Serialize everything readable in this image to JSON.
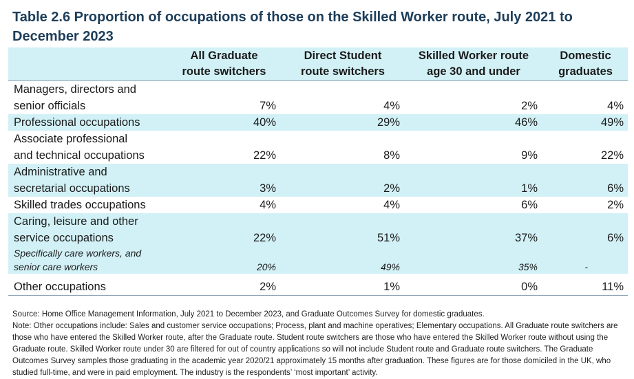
{
  "title": "Table 2.6 Proportion of occupations of those on the Skilled Worker route, July 2021 to December 2023",
  "headers": [
    [
      "",
      ""
    ],
    [
      "All Graduate",
      "route switchers"
    ],
    [
      "Direct Student",
      "route switchers"
    ],
    [
      "Skilled Worker route",
      "age 30 and under"
    ],
    [
      "Domestic",
      "graduates"
    ]
  ],
  "rows": [
    {
      "label": [
        "Managers, directors and",
        "senior officials"
      ],
      "values": [
        "7%",
        "4%",
        "2%",
        "4%"
      ]
    },
    {
      "label": [
        "Professional occupations"
      ],
      "values": [
        "40%",
        "29%",
        "46%",
        "49%"
      ]
    },
    {
      "label": [
        "Associate professional",
        "and technical occupations"
      ],
      "values": [
        "22%",
        "8%",
        "9%",
        "22%"
      ]
    },
    {
      "label": [
        "Administrative and",
        "secretarial occupations"
      ],
      "values": [
        "3%",
        "2%",
        "1%",
        "6%"
      ]
    },
    {
      "label": [
        "Skilled trades occupations"
      ],
      "values": [
        "4%",
        "4%",
        "6%",
        "2%"
      ]
    },
    {
      "label": [
        "Caring, leisure and other",
        "service occupations"
      ],
      "values": [
        "22%",
        "51%",
        "37%",
        "6%"
      ]
    },
    {
      "label": [
        "Specifically care workers, and",
        "senior care workers"
      ],
      "values": [
        "20%",
        "49%",
        "35%",
        "-"
      ]
    },
    {
      "label": [
        "Other occupations"
      ],
      "values": [
        "2%",
        "1%",
        "0%",
        "11%"
      ]
    }
  ],
  "source": "Source: Home Office Management Information, July 2021 to December 2023, and Graduate Outcomes Survey for domestic graduates.",
  "note": "Note: Other occupations include: Sales and customer service occupations; Process, plant and machine operatives; Elementary occupations. All Graduate route switchers are those who have entered the Skilled Worker route, after the Graduate route. Student route switchers are those who have entered the Skilled Worker route without using the Graduate route. Skilled Worker route under 30 are filtered for out of country applications so will not include Student route and Graduate route switchers. The Graduate Outcomes Survey samples those graduating in the academic year 2020/21 approximately 15 months after graduation. These figures are for those domiciled in the UK, who studied full-time, and were in paid employment. The industry is the respondents’ ‘most important’ activity."
}
